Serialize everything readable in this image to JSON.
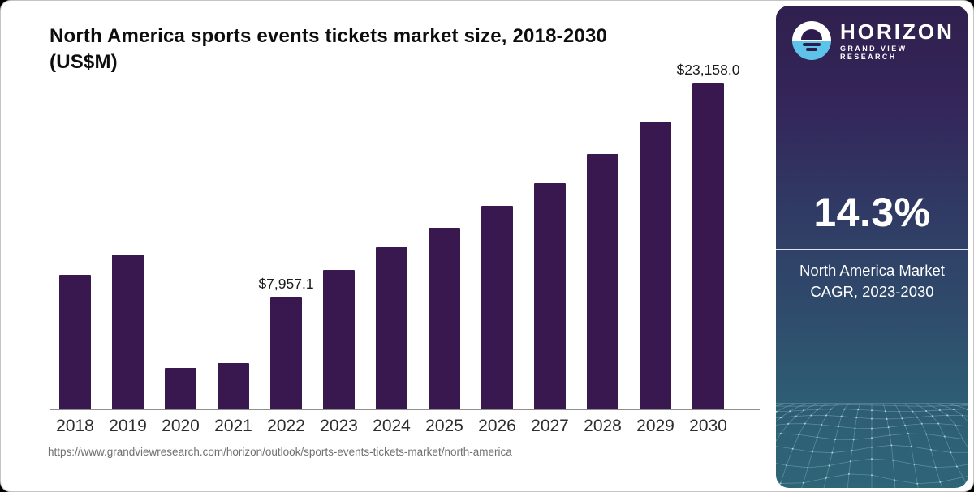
{
  "header": {
    "title_line1": "North America sports events tickets market size, 2018-2030",
    "title_line2": "(US$M)"
  },
  "chart_data": {
    "type": "bar",
    "title": "North America sports events tickets market size, 2018-2030 (US$M)",
    "categories": [
      "2018",
      "2019",
      "2020",
      "2021",
      "2022",
      "2023",
      "2024",
      "2025",
      "2026",
      "2027",
      "2028",
      "2029",
      "2030"
    ],
    "values": [
      9550,
      11000,
      2950,
      3300,
      7957.1,
      9900,
      11550,
      12900,
      14450,
      16100,
      18150,
      20450,
      23158
    ],
    "bar_labels": [
      "",
      "",
      "",
      "",
      "$7,957.1",
      "",
      "",
      "",
      "",
      "",
      "",
      "",
      "$23,158.0"
    ],
    "xlabel": "",
    "ylabel": "",
    "ylim": [
      0,
      24000
    ],
    "grid": false,
    "legend": "none",
    "bar_color": "#38184e",
    "axis_color": "#8f8f8f"
  },
  "source": {
    "url": "https://www.grandviewresearch.com/horizon/outlook/sports-events-tickets-market/north-america"
  },
  "sidebar": {
    "brand": {
      "name": "HORIZON",
      "subtitle": "GRAND VIEW RESEARCH"
    },
    "stat": {
      "value": "14.3%",
      "label_line1": "North America Market",
      "label_line2": "CAGR, 2023-2030"
    },
    "colors": {
      "gradient_top": "#30204e",
      "gradient_mid": "#303a64",
      "gradient_bottom": "#2f6578",
      "logo_blue": "#5ec3e8",
      "logo_navy": "#2d1b4d",
      "mesh_line": "#9ec6d3"
    }
  }
}
